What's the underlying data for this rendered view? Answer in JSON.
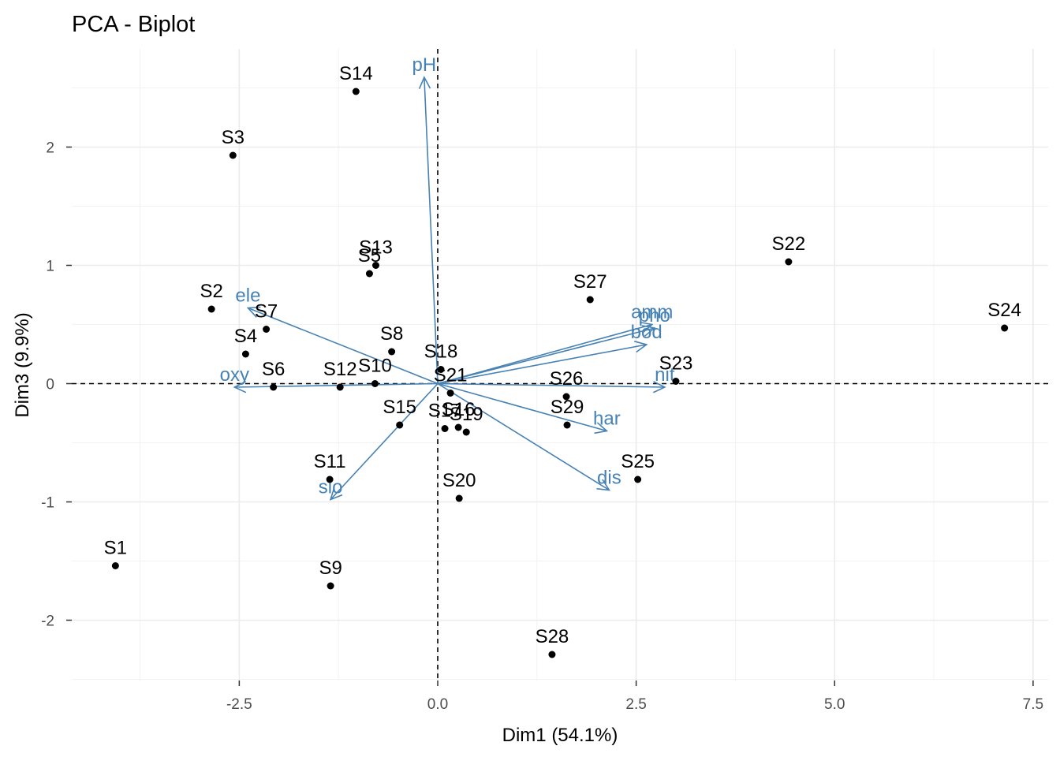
{
  "chart_data": {
    "type": "scatter",
    "subtype": "pca-biplot",
    "title": "PCA - Biplot",
    "xlabel": "Dim1 (54.1%)",
    "ylabel": "Dim3 (9.9%)",
    "xlim": [
      -4.61,
      7.69
    ],
    "ylim": [
      -2.51,
      2.83
    ],
    "xticks": [
      -2.5,
      0.0,
      2.5,
      5.0,
      7.5
    ],
    "xtick_labels": [
      "-2.5",
      "0.0",
      "2.5",
      "5.0",
      "7.5"
    ],
    "yticks": [
      -2,
      -1,
      0,
      1,
      2
    ],
    "ytick_labels": [
      "-2",
      "-1",
      "0",
      "1",
      "2"
    ],
    "grid": true,
    "legend": "none",
    "reference_lines": {
      "x": 0,
      "y": 0,
      "style": "dashed"
    },
    "colors": {
      "points": "#000000",
      "variables": "#4682b4",
      "grid": "#ebebeb",
      "ticks": "#4d4d4d"
    },
    "individuals": [
      {
        "label": "S1",
        "x": -4.06,
        "y": -1.54
      },
      {
        "label": "S2",
        "x": -2.85,
        "y": 0.63
      },
      {
        "label": "S3",
        "x": -2.58,
        "y": 1.93
      },
      {
        "label": "S4",
        "x": -2.42,
        "y": 0.25
      },
      {
        "label": "S5",
        "x": -0.86,
        "y": 0.93
      },
      {
        "label": "S6",
        "x": -2.07,
        "y": -0.03
      },
      {
        "label": "S7",
        "x": -2.16,
        "y": 0.46
      },
      {
        "label": "S8",
        "x": -0.58,
        "y": 0.27
      },
      {
        "label": "S9",
        "x": -1.35,
        "y": -1.71
      },
      {
        "label": "S10",
        "x": -0.79,
        "y": 0.0
      },
      {
        "label": "S11",
        "x": -1.36,
        "y": -0.81
      },
      {
        "label": "S12",
        "x": -1.23,
        "y": -0.03
      },
      {
        "label": "S13",
        "x": -0.78,
        "y": 1.0
      },
      {
        "label": "S14",
        "x": -1.03,
        "y": 2.47
      },
      {
        "label": "S15",
        "x": -0.48,
        "y": -0.35
      },
      {
        "label": "S16",
        "x": 0.26,
        "y": -0.37
      },
      {
        "label": "S17",
        "x": 0.09,
        "y": -0.38
      },
      {
        "label": "S18",
        "x": 0.04,
        "y": 0.12
      },
      {
        "label": "S19",
        "x": 0.36,
        "y": -0.41
      },
      {
        "label": "S20",
        "x": 0.27,
        "y": -0.97
      },
      {
        "label": "S21",
        "x": 0.16,
        "y": -0.08
      },
      {
        "label": "S22",
        "x": 4.42,
        "y": 1.03
      },
      {
        "label": "S23",
        "x": 3.0,
        "y": 0.02
      },
      {
        "label": "S24",
        "x": 7.14,
        "y": 0.47
      },
      {
        "label": "S25",
        "x": 2.52,
        "y": -0.81
      },
      {
        "label": "S26",
        "x": 1.62,
        "y": -0.11
      },
      {
        "label": "S27",
        "x": 1.92,
        "y": 0.71
      },
      {
        "label": "S28",
        "x": 1.44,
        "y": -2.29
      },
      {
        "label": "S29",
        "x": 1.63,
        "y": -0.35
      }
    ],
    "variables": [
      {
        "label": "pH",
        "x": -0.17,
        "y": 2.59
      },
      {
        "label": "ele",
        "x": -2.39,
        "y": 0.64
      },
      {
        "label": "oxy",
        "x": -2.56,
        "y": -0.03
      },
      {
        "label": "slo",
        "x": -1.35,
        "y": -0.98
      },
      {
        "label": "dis",
        "x": 2.16,
        "y": -0.9
      },
      {
        "label": "har",
        "x": 2.13,
        "y": -0.4
      },
      {
        "label": "nit",
        "x": 2.86,
        "y": -0.03
      },
      {
        "label": "amm",
        "x": 2.7,
        "y": 0.5
      },
      {
        "label": "pho",
        "x": 2.73,
        "y": 0.47
      },
      {
        "label": "bod",
        "x": 2.63,
        "y": 0.33
      }
    ]
  }
}
